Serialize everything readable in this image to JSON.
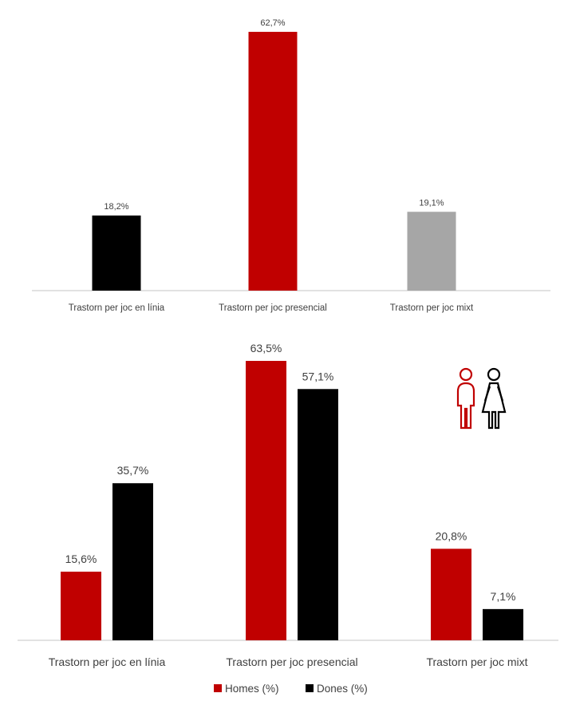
{
  "chart_data": [
    {
      "type": "bar",
      "categories": [
        "Trastorn per joc en línia",
        "Trastorn per joc presencial",
        "Trastorn per joc mixt"
      ],
      "values": [
        18.2,
        62.7,
        19.1
      ],
      "value_labels": [
        "18,2%",
        "62,7%",
        "19,1%"
      ],
      "bar_colors": [
        "#000000",
        "#c00000",
        "#a6a6a6"
      ],
      "ylim": [
        0,
        65
      ],
      "grid": false,
      "legend": "none"
    },
    {
      "type": "bar",
      "categories": [
        "Trastorn per joc en línia",
        "Trastorn per joc presencial",
        "Trastorn per joc mixt"
      ],
      "series": [
        {
          "name": "Homes (%)",
          "values": [
            15.6,
            63.5,
            20.8
          ],
          "value_labels": [
            "15,6%",
            "63,5%",
            "20,8%"
          ],
          "color": "#c00000"
        },
        {
          "name": "Dones (%)",
          "values": [
            35.7,
            57.1,
            7.1
          ],
          "value_labels": [
            "35,7%",
            "57,1%",
            "7,1%"
          ],
          "color": "#000000"
        }
      ],
      "ylim": [
        0,
        66
      ],
      "grid": false,
      "legend": "bottom-center",
      "icons": [
        "male-figure-icon",
        "female-figure-icon"
      ]
    }
  ],
  "colors": {
    "axis": "#d9d9d9",
    "text": "#404040",
    "accent_red": "#c00000",
    "black": "#000000",
    "gray": "#a6a6a6"
  }
}
